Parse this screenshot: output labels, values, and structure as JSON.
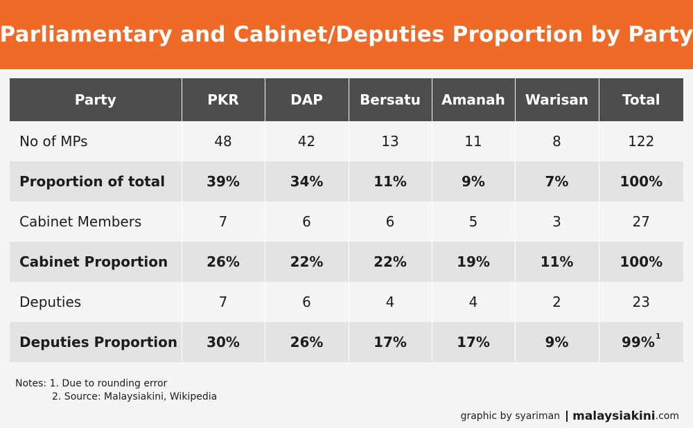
{
  "title": "Parliamentary and Cabinet/Deputies Proportion by Party",
  "chart_data": {
    "type": "table",
    "title": "Parliamentary and Cabinet/Deputies Proportion by Party",
    "columns": [
      "Party",
      "PKR",
      "DAP",
      "Bersatu",
      "Amanah",
      "Warisan",
      "Total"
    ],
    "rows": [
      {
        "label": "No of MPs",
        "values": [
          "48",
          "42",
          "13",
          "11",
          "8",
          "122"
        ],
        "emphasis": false
      },
      {
        "label": "Proportion of total",
        "values": [
          "39%",
          "34%",
          "11%",
          "9%",
          "7%",
          "100%"
        ],
        "emphasis": true
      },
      {
        "label": "Cabinet Members",
        "values": [
          "7",
          "6",
          "6",
          "5",
          "3",
          "27"
        ],
        "emphasis": false
      },
      {
        "label": "Cabinet Proportion",
        "values": [
          "26%",
          "22%",
          "22%",
          "19%",
          "11%",
          "100%"
        ],
        "emphasis": true
      },
      {
        "label": "Deputies",
        "values": [
          "7",
          "6",
          "4",
          "4",
          "2",
          "23"
        ],
        "emphasis": false
      },
      {
        "label": "Deputies Proportion",
        "values": [
          "30%",
          "26%",
          "17%",
          "17%",
          "9%",
          "99%"
        ],
        "emphasis": true
      }
    ],
    "footnote_marker": "1"
  },
  "notes": {
    "line1": "Notes: 1. Due to rounding error",
    "line2": "2. Source: Malaysiakini, Wikipedia"
  },
  "credit": {
    "byline": "graphic by syariman",
    "brand": "malaysiakini",
    "domain": ".com"
  },
  "colors": {
    "banner": "#ef6a26",
    "header": "#4d4d4d",
    "row_plain": "#f5f5f5",
    "row_emphasis": "#e3e3e3"
  }
}
